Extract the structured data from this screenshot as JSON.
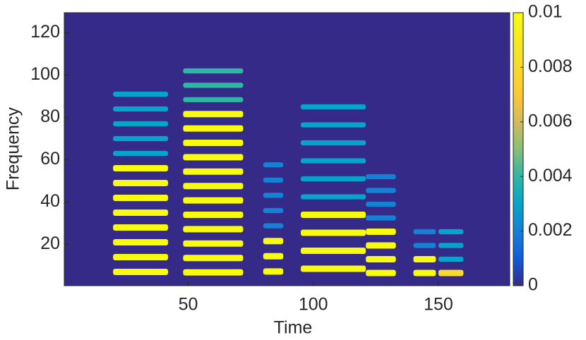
{
  "chart_data": {
    "type": "spectrogram",
    "x_label": "Time",
    "y_label": "Frequency",
    "xlim": [
      0.5,
      178.5
    ],
    "xticks": [
      50,
      100,
      150
    ],
    "ylim": [
      0.5,
      129.5
    ],
    "yticks": [
      20,
      40,
      60,
      80,
      100,
      120
    ],
    "clim": [
      0,
      0.01
    ],
    "cticks": [
      0,
      0.002,
      0.004,
      0.006,
      0.008,
      0.01
    ],
    "segments": [
      {
        "x0": 20,
        "x1": 42,
        "f0": 7,
        "bright": 8,
        "total": 13,
        "level": 0.01,
        "upper_level": 0.003
      },
      {
        "x0": 48,
        "x1": 72,
        "f0": 6.8,
        "bright": 12,
        "total": 15,
        "level": 0.01,
        "upper_level": 0.004
      },
      {
        "x0": 80,
        "x1": 88,
        "f0": 7.2,
        "bright": 3,
        "total": 8,
        "level": 0.01,
        "upper_level": 0.002
      },
      {
        "x0": 95,
        "x1": 121,
        "f0": 8.5,
        "bright": 4,
        "total": 10,
        "level": 0.01,
        "upper_level": 0.003
      },
      {
        "x0": 121,
        "x1": 133,
        "f0": 6.5,
        "bright": 4,
        "total": 8,
        "level": 0.01,
        "upper_level": 0.002
      },
      {
        "x0": 140,
        "x1": 149,
        "f0": 6.5,
        "bright": 2,
        "total": 4,
        "level": 0.01,
        "upper_level": 0.002
      },
      {
        "x0": 150,
        "x1": 160,
        "f0": 6.5,
        "bright": 1,
        "total": 4,
        "level": 0.008,
        "upper_level": 0.003
      }
    ]
  }
}
